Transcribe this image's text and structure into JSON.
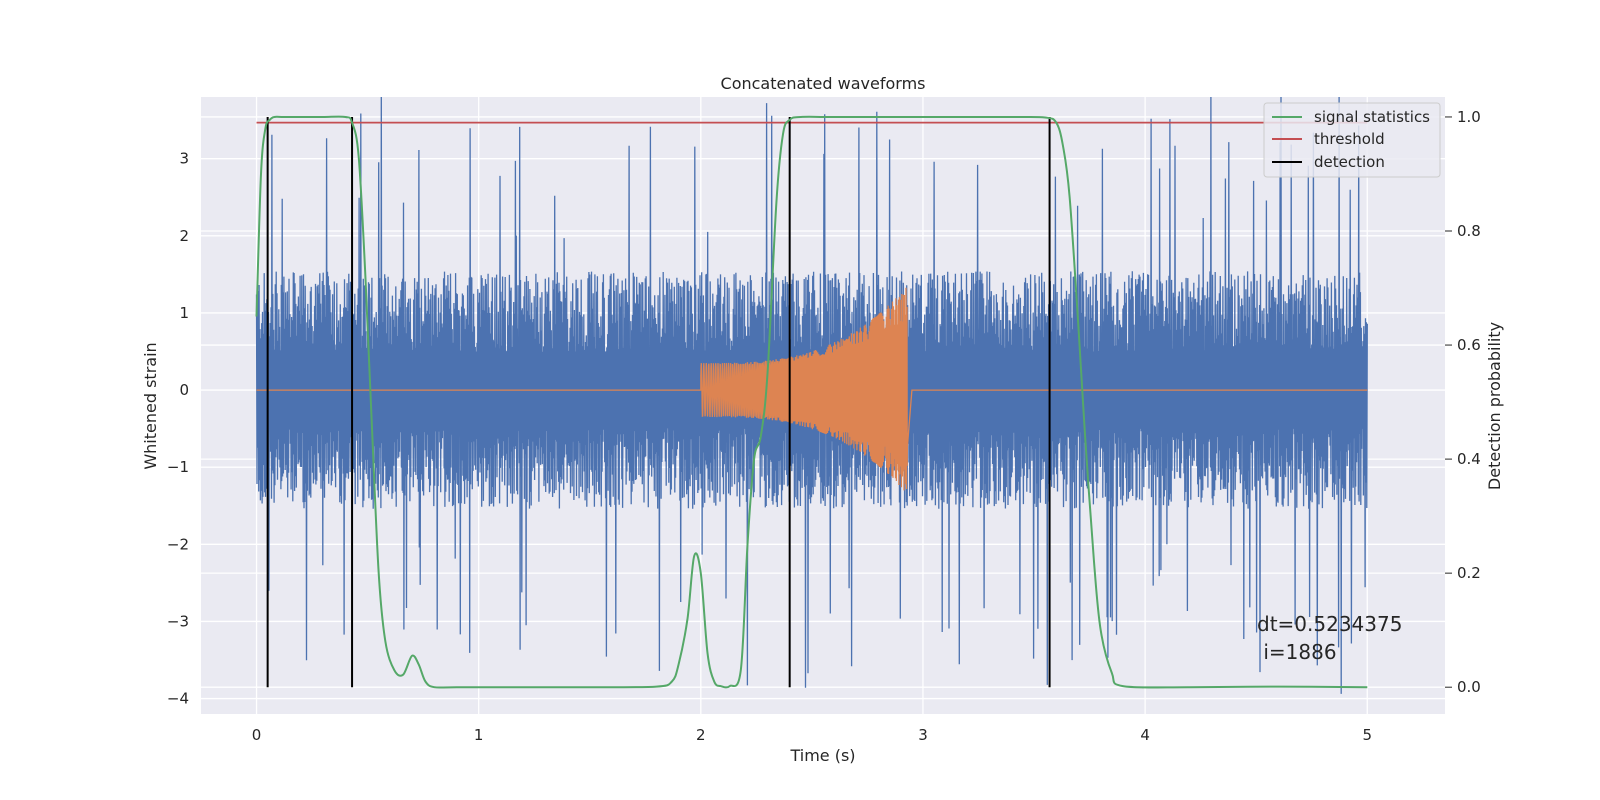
{
  "chart_data": {
    "type": "line",
    "title": "Concatenated waveforms",
    "xlabel": "Time (s)",
    "ylabel": "Whitened strain",
    "y2label": "Detection probability",
    "xlim": [
      -0.25,
      5.35
    ],
    "ylim": [
      -4.2,
      3.8
    ],
    "y2lim": [
      -0.047,
      1.035
    ],
    "x_ticks": [
      0,
      1,
      2,
      3,
      4,
      5
    ],
    "x_tick_labels": [
      "0",
      "1",
      "2",
      "3",
      "4",
      "5"
    ],
    "y_ticks": [
      3,
      2,
      1,
      0,
      -1,
      -2,
      -3,
      -4
    ],
    "y_tick_labels": [
      "3",
      "2",
      "1",
      "0",
      "−1",
      "−2",
      "−3",
      "−4"
    ],
    "y2_ticks": [
      1.0,
      0.8,
      0.6,
      0.4,
      0.2,
      0.0
    ],
    "y2_tick_labels": [
      "1.0",
      "0.8",
      "0.6",
      "0.4",
      "0.2",
      "0.0"
    ],
    "grid": true,
    "legend_position": "top-right",
    "series": [
      {
        "key": "strain",
        "axis": "left",
        "color": "#4c72b0",
        "description_range": {
          "x_start": 0,
          "x_end": 5,
          "typical_amplitude": 1.4,
          "peak_amplitude": 4.0
        }
      },
      {
        "key": "chirp",
        "axis": "left",
        "color": "#dd8452",
        "chirp": {
          "start": 2.0,
          "end": 2.93,
          "start_amplitude": 0.35,
          "peak_amplitude": 1.35
        }
      },
      {
        "name": "signal statistics",
        "axis": "right",
        "color": "#55a868",
        "x": [
          0.0,
          0.02,
          0.04,
          0.06,
          0.08,
          0.12,
          0.2,
          0.3,
          0.4,
          0.43,
          0.46,
          0.49,
          0.52,
          0.55,
          0.58,
          0.62,
          0.66,
          0.7,
          0.73,
          0.76,
          0.8,
          0.9,
          1.2,
          1.5,
          1.8,
          1.87,
          1.9,
          1.94,
          1.97,
          2.0,
          2.03,
          2.06,
          2.09,
          2.13,
          2.18,
          2.21,
          2.24,
          2.27,
          2.3,
          2.34,
          2.37,
          2.4,
          2.45,
          2.6,
          3.0,
          3.4,
          3.55,
          3.6,
          3.63,
          3.66,
          3.7,
          3.73,
          3.77,
          3.8,
          3.85,
          3.9,
          4.2,
          4.6,
          5.0
        ],
        "y": [
          0.65,
          0.9,
          0.98,
          0.995,
          1.0,
          1.0,
          1.0,
          1.0,
          1.0,
          0.99,
          0.93,
          0.72,
          0.45,
          0.2,
          0.08,
          0.03,
          0.022,
          0.055,
          0.04,
          0.01,
          0.0,
          0.0,
          0.0,
          0.0,
          0.001,
          0.01,
          0.04,
          0.12,
          0.23,
          0.2,
          0.06,
          0.01,
          0.002,
          0.002,
          0.03,
          0.25,
          0.4,
          0.44,
          0.55,
          0.85,
          0.97,
          0.995,
          1.0,
          1.0,
          1.0,
          1.0,
          0.999,
          0.99,
          0.95,
          0.86,
          0.63,
          0.44,
          0.22,
          0.1,
          0.025,
          0.002,
          0.0,
          0.001,
          0.0
        ]
      },
      {
        "name": "threshold",
        "axis": "right",
        "color": "#c44e52",
        "x": [
          0,
          5
        ],
        "y": [
          0.99,
          0.99
        ]
      },
      {
        "name": "detection",
        "axis": "right",
        "color": "#000000",
        "lines_x": [
          0.05,
          0.43,
          2.4,
          3.57
        ],
        "y": [
          0.0,
          1.0
        ]
      }
    ],
    "legend": [
      "signal statistics",
      "threshold",
      "detection"
    ],
    "annotation": {
      "line1": "dt=0.5234375",
      "line2": " i=1886",
      "x": 4.5,
      "y": -3.1
    }
  },
  "colors": {
    "background": "#eaeaf2",
    "grid": "#ffffff",
    "strain": "#4c72b0",
    "chirp": "#dd8452",
    "stat": "#55a868",
    "threshold": "#c44e52",
    "detection": "#000000"
  }
}
